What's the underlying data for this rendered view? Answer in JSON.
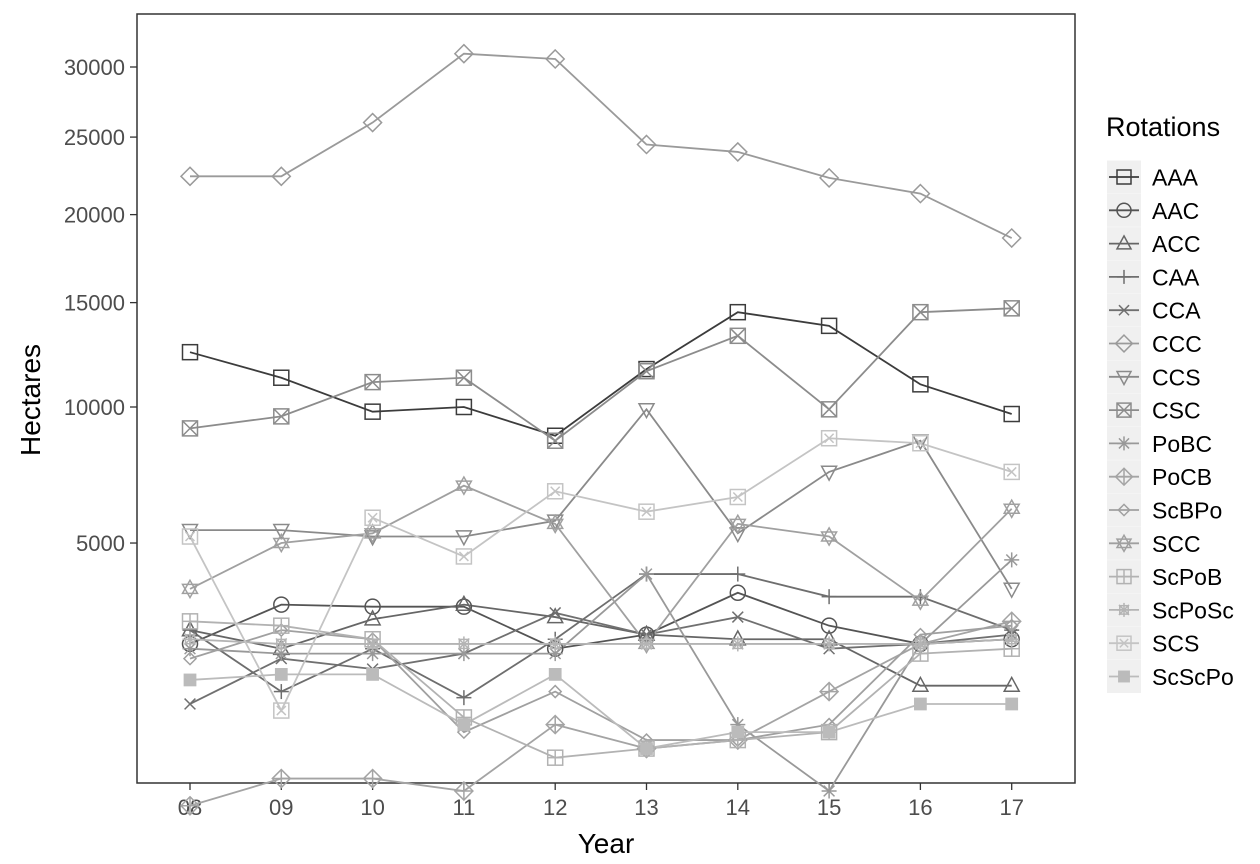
{
  "chart_data": {
    "type": "line",
    "title": "",
    "xlabel": "Year",
    "ylabel": "Hectares",
    "y_scale": "sqrt",
    "ylim": [
      0,
      32000
    ],
    "y_ticks": [
      5000,
      10000,
      15000,
      20000,
      25000,
      30000
    ],
    "y_tick_labels": [
      "5000",
      "10000",
      "15000",
      "20000",
      "25000",
      "30000"
    ],
    "x_tick_labels": [
      "08",
      "09",
      "10",
      "11",
      "12",
      "13",
      "14",
      "15",
      "16",
      "17"
    ],
    "grid": false,
    "legend": {
      "title": "Rotations",
      "placement": "right"
    },
    "series": [
      {
        "name": "AAA",
        "shape": "square",
        "color": "#3c3c3c",
        "values": [
          12500,
          11300,
          9800,
          10000,
          8800,
          11700,
          14500,
          13800,
          11000,
          9700
        ]
      },
      {
        "name": "AAC",
        "shape": "circle",
        "color": "#545454",
        "values": [
          2400,
          3300,
          3250,
          3250,
          2300,
          2600,
          3600,
          2800,
          2400,
          2500
        ]
      },
      {
        "name": "ACC",
        "shape": "triangle-up",
        "color": "#666666",
        "values": [
          2700,
          2300,
          2950,
          3300,
          3000,
          2600,
          2500,
          2500,
          1600,
          1600
        ]
      },
      {
        "name": "CAA",
        "shape": "plus",
        "color": "#6e6e6e",
        "values": [
          2700,
          1500,
          2300,
          1400,
          2500,
          4100,
          4100,
          3500,
          3500,
          2700
        ]
      },
      {
        "name": "CCA",
        "shape": "cross",
        "color": "#707070",
        "values": [
          1300,
          2100,
          1900,
          2200,
          3100,
          2600,
          3000,
          2300,
          2400,
          2600
        ]
      },
      {
        "name": "CCC",
        "shape": "diamond",
        "color": "#9a9a9a",
        "values": [
          22400,
          22400,
          26000,
          31000,
          30600,
          24500,
          24000,
          22300,
          21300,
          18600
        ]
      },
      {
        "name": "CCS",
        "shape": "triangle-down",
        "color": "#8a8a8a",
        "values": [
          5400,
          5400,
          5200,
          5200,
          5700,
          9900,
          5300,
          7400,
          8600,
          3700
        ]
      },
      {
        "name": "CSC",
        "shape": "square-cross",
        "color": "#8c8c8c",
        "values": [
          9100,
          9600,
          11100,
          11300,
          8600,
          11600,
          13300,
          9900,
          14500,
          14700
        ]
      },
      {
        "name": "PoBC",
        "shape": "asterisk",
        "color": "#999999",
        "values": [
          2300,
          2200,
          2200,
          2200,
          2200,
          4100,
          1000,
          300,
          2400,
          4500
        ]
      },
      {
        "name": "PoCB",
        "shape": "diamond-plus",
        "color": "#a4a4a4",
        "values": [
          200,
          400,
          400,
          300,
          1000,
          700,
          800,
          1500,
          2400,
          2900
        ]
      },
      {
        "name": "ScBPo",
        "shape": "diamond-small",
        "color": "#a0a0a0",
        "values": [
          2100,
          2700,
          2500,
          900,
          1500,
          800,
          800,
          1000,
          2600,
          2800
        ]
      },
      {
        "name": "SCC",
        "shape": "star",
        "color": "#a0a0a0",
        "values": [
          3700,
          5000,
          5300,
          6900,
          5600,
          2400,
          5600,
          5200,
          3400,
          6100
        ]
      },
      {
        "name": "ScPoB",
        "shape": "square-plus",
        "color": "#b2b2b2",
        "values": [
          2900,
          2800,
          2500,
          1100,
          600,
          700,
          800,
          900,
          2200,
          2300
        ]
      },
      {
        "name": "ScPoSc",
        "shape": "square-asterisk",
        "color": "#b4b4b4",
        "values": [
          2500,
          2400,
          2400,
          2400,
          2400,
          2400,
          2400,
          2400,
          2400,
          2500
        ]
      },
      {
        "name": "SCS",
        "shape": "square-x",
        "color": "#c4c4c4",
        "values": [
          5200,
          1200,
          5800,
          4600,
          6700,
          6000,
          6500,
          8700,
          8500,
          7400
        ]
      },
      {
        "name": "ScScPo",
        "shape": "square-filled",
        "color": "#bbbbbb",
        "values": [
          1700,
          1800,
          1800,
          1000,
          1800,
          700,
          900,
          900,
          1300,
          1300
        ]
      }
    ]
  }
}
